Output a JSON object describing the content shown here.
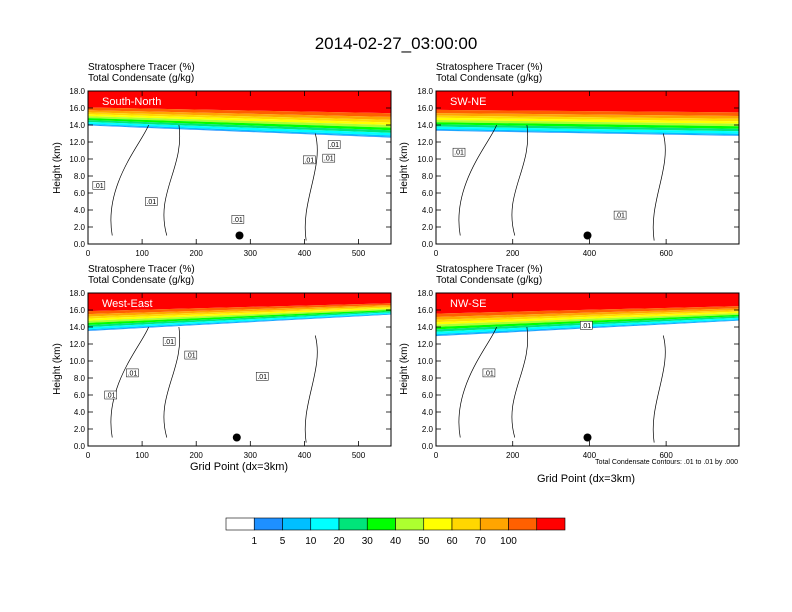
{
  "title": "2014-02-27_03:00:00",
  "colors": [
    "#ffffff",
    "#1e90ff",
    "#00bfff",
    "#00ffff",
    "#00e57a",
    "#00ff00",
    "#adff2f",
    "#ffff00",
    "#ffd700",
    "#ffa500",
    "#ff6000",
    "#ff0000"
  ],
  "chart_data": [
    {
      "type": "heatmap",
      "panel": "South-North",
      "header_line1": "Stratosphere Tracer   (%)",
      "header_line2": "Total Condensate   (g/kg)",
      "region_label": "South-North",
      "ylabel": "Height (km)",
      "xlabel": "",
      "xlim": [
        0,
        560
      ],
      "ylim": [
        0,
        18
      ],
      "xticks": [
        "0",
        "100",
        "200",
        "300",
        "400",
        "500"
      ],
      "xtick_values": [
        0,
        100,
        200,
        300,
        400,
        500
      ],
      "yticks": [
        "0.0",
        "2.0",
        "4.0",
        "6.0",
        "8.0",
        "10.0",
        "12.0",
        "14.0",
        "16.0",
        "18.0"
      ],
      "contour_labels": [
        ".01",
        ".01",
        ".01",
        ".01",
        ".01",
        ".01"
      ],
      "contour_label_points": [
        [
          20,
          6.9
        ],
        [
          117,
          5.0
        ],
        [
          277,
          2.9
        ],
        [
          409,
          9.9
        ],
        [
          445,
          10.1
        ],
        [
          455,
          11.7
        ]
      ],
      "marker_point": [
        280,
        1.0
      ],
      "tropopause_km": [
        14.0,
        12.6
      ]
    },
    {
      "type": "heatmap",
      "panel": "SW-NE",
      "header_line1": "Stratosphere Tracer   (%)",
      "header_line2": "Total Condensate   (g/kg)",
      "region_label": "SW-NE",
      "ylabel": "Height (km)",
      "xlabel": "",
      "xlim": [
        0,
        790
      ],
      "ylim": [
        0,
        18
      ],
      "xticks": [
        "0",
        "200",
        "400",
        "600"
      ],
      "xtick_values": [
        0,
        200,
        400,
        600
      ],
      "yticks": [
        "0.0",
        "2.0",
        "4.0",
        "6.0",
        "8.0",
        "10.0",
        "12.0",
        "14.0",
        "16.0",
        "18.0"
      ],
      "contour_labels": [
        ".01",
        ".01"
      ],
      "contour_label_points": [
        [
          60,
          10.8
        ],
        [
          480,
          3.4
        ]
      ],
      "marker_point": [
        395,
        1.0
      ],
      "tropopause_km": [
        13.4,
        12.8
      ]
    },
    {
      "type": "heatmap",
      "panel": "West-East",
      "header_line1": "Stratosphere Tracer   (%)",
      "header_line2": "Total Condensate   (g/kg)",
      "region_label": "West-East",
      "ylabel": "Height (km)",
      "xlabel": "Grid Point (dx=3km)",
      "xlim": [
        0,
        560
      ],
      "ylim": [
        0,
        18
      ],
      "xticks": [
        "0",
        "100",
        "200",
        "300",
        "400",
        "500"
      ],
      "xtick_values": [
        0,
        100,
        200,
        300,
        400,
        500
      ],
      "yticks": [
        "0.0",
        "2.0",
        "4.0",
        "6.0",
        "8.0",
        "10.0",
        "12.0",
        "14.0",
        "16.0",
        "18.0"
      ],
      "contour_labels": [
        ".01",
        ".01",
        ".01",
        ".01",
        ".01"
      ],
      "contour_label_points": [
        [
          42,
          6.0
        ],
        [
          82,
          8.6
        ],
        [
          150,
          12.3
        ],
        [
          190,
          10.7
        ],
        [
          322,
          8.2
        ]
      ],
      "marker_point": [
        275,
        1.0
      ],
      "tropopause_km": [
        13.6,
        15.5
      ]
    },
    {
      "type": "heatmap",
      "panel": "NW-SE",
      "header_line1": "Stratosphere Tracer   (%)",
      "header_line2": "Total Condensate   (g/kg)",
      "region_label": "NW-SE",
      "ylabel": "Height (km)",
      "xlabel": "Grid Point (dx=3km)",
      "xlim": [
        0,
        790
      ],
      "ylim": [
        0,
        18
      ],
      "xticks": [
        "0",
        "200",
        "400",
        "600"
      ],
      "xtick_values": [
        0,
        200,
        400,
        600
      ],
      "yticks": [
        "0.0",
        "2.0",
        "4.0",
        "6.0",
        "8.0",
        "10.0",
        "12.0",
        "14.0",
        "16.0",
        "18.0"
      ],
      "contour_labels": [
        ".01",
        ".01"
      ],
      "contour_label_points": [
        [
          138,
          8.6
        ],
        [
          392,
          14.2
        ]
      ],
      "marker_point": [
        395,
        1.0
      ],
      "tropopause_km": [
        13.0,
        14.8
      ],
      "footnote": "Total Condensate Contours: .01 to .01 by .000"
    }
  ],
  "colorbar": {
    "labels": [
      "1",
      "5",
      "10",
      "20",
      "30",
      "40",
      "50",
      "60",
      "70",
      "100"
    ],
    "colors": [
      "#ffffff",
      "#1e90ff",
      "#00bfff",
      "#00ffff",
      "#00e57a",
      "#00ff00",
      "#adff2f",
      "#ffff00",
      "#ffd700",
      "#ffa500",
      "#ff6000",
      "#ff0000"
    ]
  }
}
